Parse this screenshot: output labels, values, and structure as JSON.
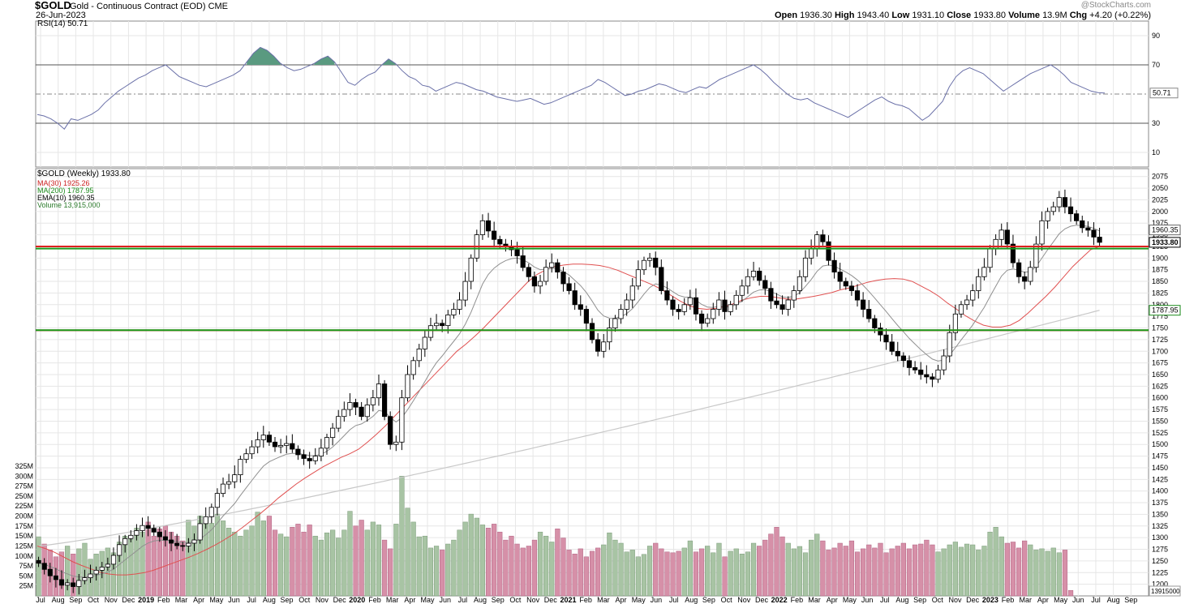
{
  "header": {
    "symbol": "$GOLD",
    "description": "Gold - Continuous Contract (EOD) CME",
    "date": "26-Jun-2023",
    "watermark": "@StockCharts.com",
    "open_label": "Open",
    "open": "1936.30",
    "high_label": "High",
    "high": "1943.40",
    "low_label": "Low",
    "low": "1931.10",
    "close_label": "Close",
    "close": "1933.80",
    "volume_label": "Volume",
    "volume": "13.9M",
    "chg_label": "Chg",
    "chg": "+4.20 (+0.22%)"
  },
  "legends": {
    "rsi": "RSI(14) 50.71",
    "price": "$GOLD (Weekly) 1933.80",
    "ma30": "MA(30) 1925.26",
    "ma200": "MA(200) 1787.95",
    "ema10": "EMA(10) 1960.35",
    "volume": "Volume 13,915,000"
  },
  "colors": {
    "ma30": "#e05050",
    "ma200": "#c8c8c8",
    "ema10": "#909090",
    "rsi_line": "#6a70a8",
    "rsi_fill": "#5a9a80",
    "vol_up": "#a8c4a4",
    "vol_down": "#d690a8",
    "support": "#1a9a1a",
    "resistance": "#dd2020",
    "grid": "#e6e6e6"
  },
  "chart_data": [
    {
      "type": "line",
      "name": "RSI(14)",
      "yticks": [
        10,
        30,
        50.71,
        70,
        90
      ],
      "ylim": [
        0,
        100
      ],
      "reference_lines": [
        30,
        70
      ],
      "current_value": 50.71,
      "values": [
        36,
        35,
        33,
        30,
        26,
        33,
        32,
        34,
        36,
        39,
        44,
        48,
        52,
        55,
        58,
        61,
        63,
        66,
        68,
        70,
        66,
        62,
        60,
        58,
        56,
        55,
        57,
        59,
        61,
        63,
        66,
        72,
        78,
        82,
        80,
        76,
        71,
        68,
        66,
        67,
        69,
        71,
        74,
        76,
        72,
        65,
        58,
        56,
        60,
        63,
        65,
        70,
        74,
        71,
        66,
        62,
        60,
        56,
        55,
        52,
        54,
        56,
        58,
        57,
        55,
        53,
        52,
        50,
        48,
        47,
        46,
        45,
        46,
        47,
        45,
        43,
        44,
        46,
        48,
        50,
        52,
        54,
        56,
        60,
        58,
        55,
        52,
        49,
        50,
        52,
        53,
        55,
        57,
        56,
        54,
        52,
        51,
        53,
        55,
        54,
        57,
        60,
        62,
        64,
        66,
        68,
        70,
        67,
        63,
        58,
        54,
        50,
        47,
        46,
        47,
        44,
        42,
        40,
        38,
        36,
        34,
        37,
        40,
        43,
        46,
        48,
        45,
        43,
        42,
        40,
        36,
        32,
        35,
        40,
        45,
        55,
        62,
        66,
        68,
        66,
        64,
        60,
        56,
        52,
        55,
        58,
        61,
        64,
        66,
        68,
        70,
        67,
        63,
        58,
        56,
        54,
        52,
        51,
        50.71
      ],
      "current_label": "50.71"
    },
    {
      "type": "candlestick",
      "name": "$GOLD (Weekly)",
      "frequency": "weekly",
      "x_start": "2018-07-02",
      "x_end": "2023-06-26",
      "xticks": [
        "Jul",
        "Aug",
        "Sep",
        "Oct",
        "Nov",
        "Dec",
        "2019",
        "Feb",
        "Mar",
        "Apr",
        "May",
        "Jun",
        "Jul",
        "Aug",
        "Sep",
        "Oct",
        "Nov",
        "Dec",
        "2020",
        "Feb",
        "Mar",
        "Apr",
        "May",
        "Jun",
        "Jul",
        "Aug",
        "Sep",
        "Oct",
        "Nov",
        "Dec",
        "2021",
        "Feb",
        "Mar",
        "Apr",
        "May",
        "Jun",
        "Jul",
        "Aug",
        "Sep",
        "Oct",
        "Nov",
        "Dec",
        "2022",
        "Feb",
        "Mar",
        "Apr",
        "May",
        "Jun",
        "Jul",
        "Aug",
        "Sep",
        "Oct",
        "Nov",
        "Dec",
        "2023",
        "Feb",
        "Mar",
        "Apr",
        "May",
        "Jun",
        "Jul",
        "Aug",
        "Sep"
      ],
      "yticks": [
        1200,
        1225,
        1250,
        1275,
        1300,
        1325,
        1350,
        1375,
        1400,
        1425,
        1450,
        1475,
        1500,
        1525,
        1550,
        1575,
        1600,
        1625,
        1650,
        1675,
        1700,
        1725,
        1750,
        1775,
        1800,
        1825,
        1850,
        1875,
        1900,
        1925,
        1950,
        1975,
        2000,
        2025,
        2050,
        2075
      ],
      "ylim": [
        1175,
        2085
      ],
      "closes": [
        1245,
        1232,
        1218,
        1210,
        1198,
        1203,
        1195,
        1208,
        1214,
        1222,
        1230,
        1237,
        1243,
        1262,
        1285,
        1298,
        1305,
        1315,
        1326,
        1320,
        1312,
        1302,
        1295,
        1288,
        1283,
        1282,
        1288,
        1295,
        1330,
        1345,
        1365,
        1395,
        1415,
        1420,
        1435,
        1468,
        1480,
        1495,
        1510,
        1520,
        1505,
        1495,
        1498,
        1502,
        1490,
        1478,
        1470,
        1465,
        1475,
        1492,
        1515,
        1535,
        1560,
        1575,
        1590,
        1580,
        1560,
        1585,
        1600,
        1630,
        1560,
        1500,
        1505,
        1600,
        1650,
        1680,
        1705,
        1730,
        1755,
        1760,
        1755,
        1778,
        1790,
        1810,
        1850,
        1900,
        1950,
        1980,
        1958,
        1940,
        1930,
        1925,
        1918,
        1905,
        1880,
        1860,
        1840,
        1850,
        1880,
        1890,
        1870,
        1845,
        1830,
        1800,
        1790,
        1760,
        1725,
        1700,
        1720,
        1750,
        1770,
        1790,
        1810,
        1840,
        1875,
        1895,
        1900,
        1880,
        1830,
        1810,
        1790,
        1785,
        1800,
        1815,
        1780,
        1760,
        1770,
        1790,
        1810,
        1785,
        1800,
        1820,
        1840,
        1860,
        1872,
        1852,
        1835,
        1808,
        1800,
        1790,
        1810,
        1830,
        1860,
        1900,
        1920,
        1950,
        1935,
        1895,
        1870,
        1850,
        1840,
        1830,
        1810,
        1790,
        1770,
        1750,
        1735,
        1720,
        1700,
        1690,
        1680,
        1665,
        1660,
        1650,
        1645,
        1640,
        1660,
        1690,
        1740,
        1780,
        1800,
        1810,
        1830,
        1860,
        1880,
        1920,
        1940,
        1960,
        1930,
        1890,
        1860,
        1850,
        1880,
        1930,
        1980,
        2000,
        2010,
        2030,
        2010,
        1995,
        1980,
        1965,
        1960,
        1945,
        1933.8
      ]
    },
    {
      "type": "line",
      "name": "MA(30)",
      "current_value": 1925.26,
      "values": [
        1282,
        1276,
        1268,
        1258,
        1248,
        1240,
        1233,
        1226,
        1222,
        1220,
        1220,
        1222,
        1225,
        1230,
        1237,
        1244,
        1251,
        1258,
        1266,
        1275,
        1285,
        1296,
        1308,
        1322,
        1337,
        1352,
        1368,
        1385,
        1400,
        1415,
        1428,
        1440,
        1452,
        1462,
        1472,
        1480,
        1490,
        1505,
        1522,
        1540,
        1560,
        1580,
        1600,
        1620,
        1640,
        1660,
        1680,
        1700,
        1715,
        1732,
        1750,
        1770,
        1790,
        1810,
        1830,
        1850,
        1865,
        1875,
        1882,
        1885,
        1887,
        1887,
        1886,
        1884,
        1880,
        1874,
        1866,
        1858,
        1850,
        1842,
        1832,
        1820,
        1808,
        1798,
        1792,
        1790,
        1792,
        1796,
        1802,
        1810,
        1815,
        1818,
        1818,
        1815,
        1812,
        1812,
        1815,
        1818,
        1822,
        1826,
        1832,
        1836,
        1842,
        1848,
        1852,
        1855,
        1856,
        1855,
        1850,
        1840,
        1830,
        1818,
        1803,
        1790,
        1776,
        1765,
        1756,
        1752,
        1752,
        1756,
        1766,
        1782,
        1800,
        1818,
        1838,
        1860,
        1882,
        1900,
        1918,
        1925.26
      ],
      "current_label": "1925.26"
    },
    {
      "type": "line",
      "name": "MA(200)",
      "current_value": 1787.95,
      "start_value": 1282,
      "current_label": "1787.95"
    },
    {
      "type": "line",
      "name": "EMA(10)",
      "current_value": 1960.35,
      "current_label": "1960.35"
    },
    {
      "type": "bar",
      "name": "Volume",
      "yticks": [
        "25M",
        "50M",
        "75M",
        "100M",
        "125M",
        "150M",
        "175M",
        "200M",
        "225M",
        "250M",
        "275M",
        "300M",
        "325M"
      ],
      "ylim": [
        0,
        325
      ],
      "values_millions": [
        148,
        130,
        115,
        98,
        110,
        125,
        105,
        118,
        132,
        92,
        105,
        112,
        120,
        108,
        135,
        150,
        142,
        170,
        160,
        185,
        150,
        168,
        175,
        160,
        150,
        138,
        190,
        175,
        200,
        195,
        182,
        205,
        188,
        170,
        160,
        150,
        165,
        175,
        210,
        188,
        200,
        165,
        155,
        148,
        172,
        180,
        160,
        178,
        150,
        140,
        158,
        165,
        145,
        165,
        212,
        175,
        190,
        165,
        185,
        178,
        140,
        118,
        180,
        300,
        220,
        185,
        148,
        150,
        120,
        125,
        115,
        130,
        140,
        165,
        185,
        205,
        195,
        178,
        170,
        180,
        160,
        140,
        150,
        130,
        120,
        125,
        140,
        160,
        150,
        135,
        168,
        145,
        115,
        105,
        118,
        98,
        112,
        120,
        128,
        158,
        140,
        132,
        110,
        115,
        98,
        104,
        125,
        132,
        118,
        110,
        108,
        112,
        120,
        138,
        110,
        118,
        125,
        108,
        132,
        98,
        112,
        118,
        105,
        110,
        132,
        125,
        140,
        155,
        172,
        148,
        132,
        118,
        124,
        108,
        140,
        155,
        138,
        115,
        120,
        132,
        125,
        138,
        110,
        118,
        128,
        120,
        132,
        108,
        118,
        125,
        132,
        118,
        128,
        130,
        140,
        128,
        110,
        118,
        128,
        135,
        122,
        130,
        128,
        115,
        125,
        160,
        172,
        148,
        132,
        135,
        120,
        138,
        128,
        115,
        118,
        112,
        120,
        108,
        115,
        13.9
      ],
      "current_label": "13.915M"
    }
  ],
  "horizontal_lines": {
    "resistance": [
      1925,
      1745
    ],
    "support": [
      1922,
      1747
    ]
  },
  "price_labels": {
    "ema10": "1960.35",
    "close": "1933.80",
    "ma200": "1787.95",
    "volume": "13915000"
  }
}
